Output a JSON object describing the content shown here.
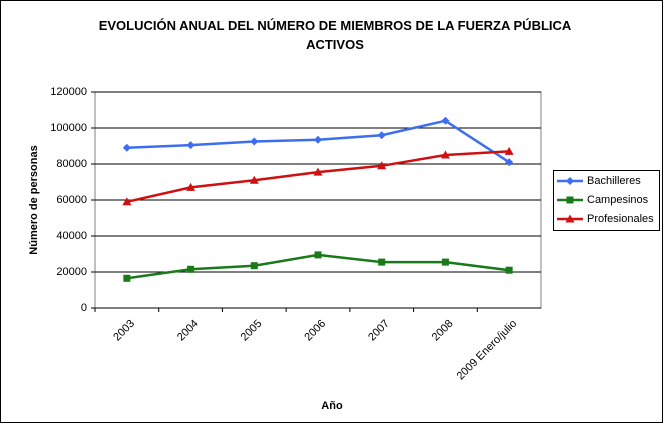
{
  "chart_data": {
    "type": "line",
    "title": "EVOLUCIÓN ANUAL DEL NÚMERO DE MIEMBROS DE LA FUERZA PÚBLICA ACTIVOS",
    "x_label": "Año",
    "y_label": "Número de personas",
    "categories": [
      "2003",
      "2004",
      "2005",
      "2006",
      "2007",
      "2008",
      "2009 Enero/julio"
    ],
    "series": [
      {
        "name": "Bachilleres",
        "color": "#3d6ef0",
        "marker": "diamond",
        "values": [
          89000,
          90500,
          92500,
          93500,
          96000,
          104000,
          81000
        ]
      },
      {
        "name": "Campesinos",
        "color": "#1a7a1a",
        "marker": "square",
        "values": [
          16500,
          21500,
          23500,
          29500,
          25500,
          25500,
          21000
        ]
      },
      {
        "name": "Profesionales",
        "color": "#d01010",
        "marker": "triangle",
        "values": [
          59000,
          67000,
          71000,
          75500,
          79000,
          85000,
          87000
        ]
      }
    ],
    "ylim": [
      0,
      120000
    ],
    "yticks": [
      0,
      20000,
      40000,
      60000,
      80000,
      100000,
      120000
    ],
    "grid": true,
    "legend": "right"
  }
}
